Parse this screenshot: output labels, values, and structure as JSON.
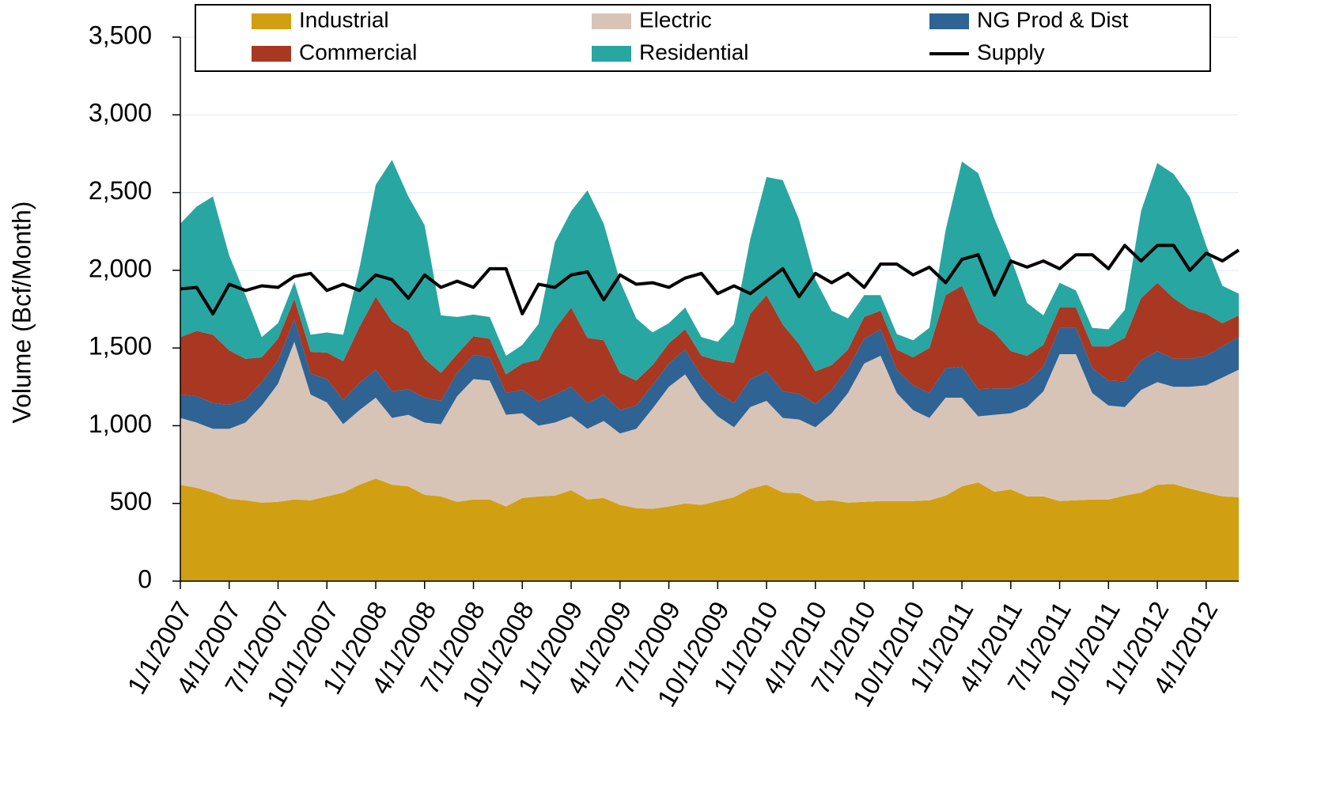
{
  "chart_data": {
    "type": "area",
    "y_label": "Volume (Bcf/Month)",
    "categories": [
      "1/1/2007",
      null,
      null,
      "4/1/2007",
      null,
      null,
      "7/1/2007",
      null,
      null,
      "10/1/2007",
      null,
      null,
      "1/1/2008",
      null,
      null,
      "4/1/2008",
      null,
      null,
      "7/1/2008",
      null,
      null,
      "10/1/2008",
      null,
      null,
      "1/1/2009",
      null,
      null,
      "4/1/2009",
      null,
      null,
      "7/1/2009",
      null,
      null,
      "10/1/2009",
      null,
      null,
      "1/1/2010",
      null,
      null,
      "4/1/2010",
      null,
      null,
      "7/1/2010",
      null,
      null,
      "10/1/2010",
      null,
      null,
      "1/1/2011",
      null,
      null,
      "4/1/2011",
      null,
      null,
      "7/1/2011",
      null,
      null,
      "10/1/2011",
      null,
      null,
      "1/1/2012",
      null,
      null,
      "4/1/2012",
      null,
      null
    ],
    "series": [
      {
        "name": "Industrial",
        "color": "#d19f12",
        "values": [
          620,
          600,
          570,
          530,
          520,
          505,
          510,
          525,
          520,
          545,
          570,
          620,
          660,
          620,
          610,
          555,
          545,
          510,
          525,
          525,
          480,
          535,
          545,
          550,
          585,
          525,
          535,
          490,
          470,
          465,
          480,
          500,
          490,
          515,
          540,
          595,
          620,
          570,
          565,
          515,
          520,
          505,
          510,
          515,
          515,
          515,
          520,
          550,
          610,
          635,
          575,
          590,
          545,
          545,
          515,
          520,
          525,
          525,
          550,
          570,
          620,
          625,
          595,
          570,
          545,
          540
        ]
      },
      {
        "name": "Electric",
        "color": "#d8c4b7",
        "values": [
          430,
          420,
          410,
          450,
          500,
          625,
          760,
          1015,
          680,
          605,
          440,
          480,
          520,
          430,
          460,
          465,
          465,
          680,
          775,
          765,
          590,
          545,
          455,
          470,
          475,
          455,
          495,
          460,
          510,
          645,
          770,
          830,
          680,
          545,
          450,
          525,
          540,
          480,
          475,
          475,
          560,
          705,
          890,
          935,
          695,
          585,
          530,
          630,
          570,
          425,
          495,
          490,
          575,
          675,
          945,
          940,
          685,
          605,
          570,
          660,
          660,
          625,
          655,
          690,
          765,
          820
        ]
      },
      {
        "name": "NG Prod & Dist",
        "color": "#2e6394",
        "values": [
          150,
          170,
          165,
          155,
          150,
          150,
          150,
          145,
          135,
          150,
          155,
          175,
          180,
          170,
          165,
          160,
          150,
          150,
          155,
          150,
          140,
          150,
          155,
          180,
          190,
          165,
          170,
          150,
          150,
          150,
          150,
          160,
          150,
          150,
          155,
          180,
          190,
          170,
          165,
          150,
          150,
          160,
          160,
          170,
          150,
          160,
          160,
          190,
          200,
          175,
          170,
          160,
          160,
          160,
          170,
          170,
          160,
          160,
          165,
          190,
          200,
          180,
          180,
          190,
          200,
          210
        ]
      },
      {
        "name": "Commercial",
        "color": "#a83822",
        "values": [
          370,
          420,
          440,
          350,
          260,
          160,
          140,
          130,
          140,
          170,
          250,
          360,
          470,
          450,
          370,
          250,
          180,
          120,
          120,
          120,
          120,
          170,
          270,
          420,
          510,
          420,
          350,
          240,
          160,
          130,
          130,
          130,
          130,
          210,
          260,
          420,
          490,
          430,
          320,
          210,
          160,
          120,
          140,
          120,
          130,
          180,
          290,
          470,
          520,
          430,
          360,
          240,
          170,
          140,
          130,
          130,
          140,
          220,
          280,
          400,
          440,
          390,
          320,
          270,
          150,
          140
        ]
      },
      {
        "name": "Residential",
        "color": "#28a6a2",
        "values": [
          730,
          800,
          890,
          610,
          410,
          130,
          100,
          110,
          110,
          130,
          170,
          380,
          720,
          1040,
          870,
          860,
          370,
          240,
          140,
          140,
          120,
          120,
          230,
          560,
          620,
          950,
          750,
          590,
          400,
          210,
          130,
          140,
          120,
          120,
          250,
          480,
          760,
          930,
          800,
          590,
          350,
          200,
          140,
          100,
          100,
          110,
          130,
          420,
          800,
          960,
          730,
          600,
          340,
          190,
          160,
          110,
          120,
          110,
          180,
          560,
          770,
          800,
          720,
          440,
          240,
          140
        ]
      },
      {
        "name": "Supply",
        "type": "line",
        "color": "#000000",
        "values": [
          1880,
          1890,
          1720,
          1910,
          1870,
          1900,
          1890,
          1960,
          1980,
          1870,
          1910,
          1870,
          1970,
          1940,
          1820,
          1970,
          1890,
          1930,
          1890,
          2010,
          2010,
          1720,
          1910,
          1890,
          1970,
          1990,
          1810,
          1970,
          1910,
          1920,
          1890,
          1950,
          1980,
          1850,
          1900,
          1850,
          1930,
          2010,
          1830,
          1980,
          1920,
          1980,
          1890,
          2040,
          2040,
          1970,
          2020,
          1920,
          2070,
          2100,
          1840,
          2060,
          2020,
          2060,
          2010,
          2100,
          2100,
          2010,
          2160,
          2060,
          2160,
          2160,
          2000,
          2110,
          2060,
          2130
        ]
      }
    ],
    "ylim": [
      0,
      3500
    ],
    "yticks": [
      0,
      500,
      {
        "value": 1000,
        "label": "1,000"
      },
      {
        "value": 1500,
        "label": "1,500"
      },
      {
        "value": 2000,
        "label": "2,000"
      },
      {
        "value": 2500,
        "label": "2,500"
      },
      {
        "value": 3000,
        "label": "3,000"
      },
      {
        "value": 3500,
        "label": "3,500"
      }
    ],
    "grid": true,
    "legend": "top"
  }
}
